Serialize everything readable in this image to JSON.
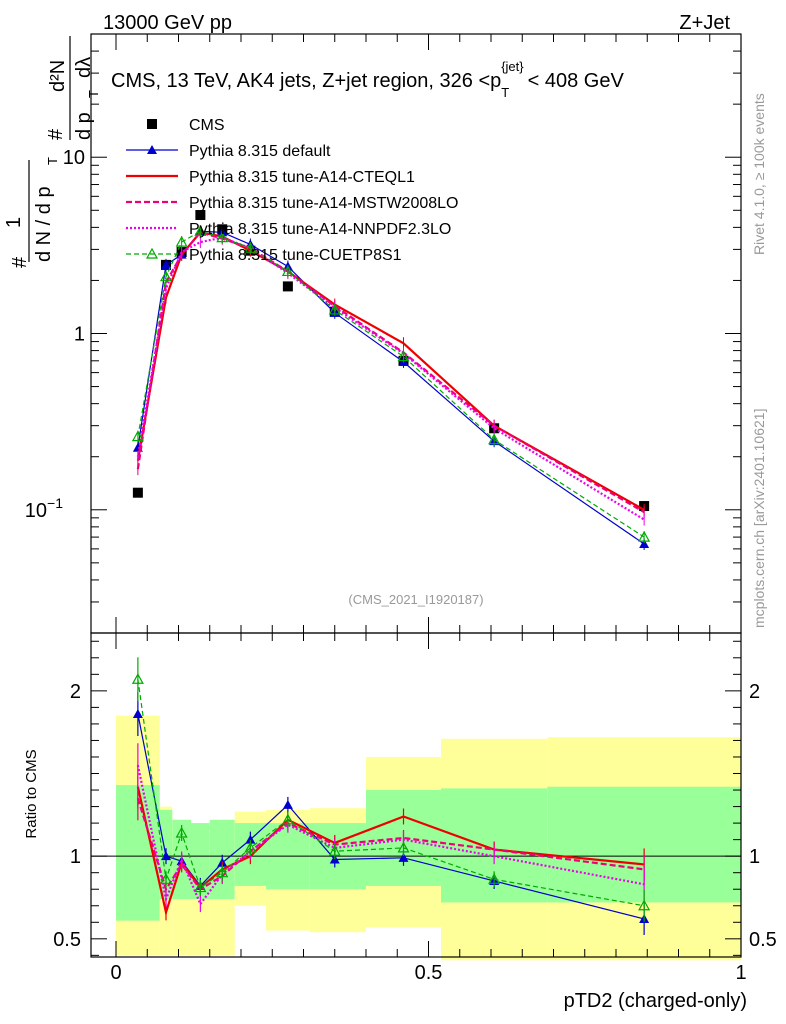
{
  "header": {
    "left": "13000 GeV pp",
    "right": "Z+Jet"
  },
  "side_labels": {
    "rivet": "Rivet 4.1.0, ≥ 100k events",
    "mcplots": "mcplots.cern.ch [arXiv:2401.10621]"
  },
  "colors": {
    "cms": "#000000",
    "default": "#0000cc",
    "cteql1": "#ee0000",
    "mstw": "#ee0077",
    "nnpdf": "#ee00ee",
    "cuetp8s1": "#00aa00",
    "band_outer": "#ffff99",
    "band_inner": "#99ff99"
  },
  "chart_data": [
    {
      "type": "line",
      "title": "CMS, 13 TeV, AK4 jets, Z+jet region, 326 <p",
      "title_sub": "T",
      "title_sup": "{jet}",
      "title_tail": "< 408 GeV",
      "ylabel_parts": [
        "#",
        "1",
        "d N / d p",
        "T",
        "#",
        "d²N",
        "d p",
        "T",
        "dλ"
      ],
      "yscale": "log",
      "ylim": [
        0.02,
        50
      ],
      "xlim": [
        -0.04,
        1.0
      ],
      "yticks": [
        {
          "v": 0.1,
          "label": "10",
          "sup": "−1"
        },
        {
          "v": 1,
          "label": "1"
        },
        {
          "v": 10,
          "label": "10"
        }
      ],
      "watermark": "(CMS_2021_I1920187)",
      "legend_position": "top-left",
      "x": [
        0.035,
        0.08,
        0.105,
        0.135,
        0.17,
        0.215,
        0.275,
        0.35,
        0.46,
        0.605,
        0.845
      ],
      "series": [
        {
          "key": "cms",
          "name": "CMS",
          "values": [
            0.125,
            2.45,
            2.9,
            4.7,
            3.9,
            2.95,
            1.85,
            1.33,
            0.7,
            0.29,
            0.105
          ]
        },
        {
          "key": "default",
          "name": "Pythia 8.315 default",
          "values": [
            0.225,
            2.45,
            2.8,
            3.8,
            3.75,
            3.2,
            2.4,
            1.31,
            0.69,
            0.245,
            0.064
          ]
        },
        {
          "key": "cteql1",
          "name": "Pythia 8.315 tune-A14-CTEQL1",
          "values": [
            0.19,
            1.6,
            2.8,
            3.75,
            3.55,
            2.95,
            2.25,
            1.46,
            0.88,
            0.3,
            0.1
          ]
        },
        {
          "key": "mstw",
          "name": "Pythia 8.315 tune-A14-MSTW2008LO",
          "values": [
            0.17,
            1.95,
            2.8,
            3.75,
            3.45,
            3.05,
            2.25,
            1.43,
            0.78,
            0.3,
            0.097
          ]
        },
        {
          "key": "nnpdf",
          "name": "Pythia 8.315 tune-A14-NNPDF2.3LO",
          "values": [
            0.2,
            1.8,
            2.9,
            3.3,
            3.5,
            3.05,
            2.2,
            1.4,
            0.77,
            0.29,
            0.088
          ]
        },
        {
          "key": "cuetp8s1",
          "name": "Pythia 8.315 tune-CUETP8S1",
          "values": [
            0.26,
            2.1,
            3.3,
            3.8,
            3.5,
            3.05,
            2.25,
            1.36,
            0.74,
            0.25,
            0.07
          ]
        }
      ]
    },
    {
      "type": "line",
      "ylabel": "Ratio to CMS",
      "xlabel": "pTD2 (charged-only)",
      "ylim": [
        0.39,
        2.35
      ],
      "xlim": [
        -0.04,
        1.0
      ],
      "xticks": [
        {
          "v": 0,
          "label": "0"
        },
        {
          "v": 0.5,
          "label": "0.5"
        },
        {
          "v": 1,
          "label": "1"
        }
      ],
      "yticks": [
        {
          "v": 0.5,
          "label": "0.5"
        },
        {
          "v": 1,
          "label": "1"
        },
        {
          "v": 2,
          "label": "2"
        }
      ],
      "x": [
        0.035,
        0.08,
        0.105,
        0.135,
        0.17,
        0.215,
        0.275,
        0.35,
        0.46,
        0.605,
        0.845
      ],
      "bands": [
        {
          "x0": 0.0,
          "x1": 0.07,
          "outer": [
            0.4,
            1.85
          ],
          "inner": [
            0.61,
            1.43
          ]
        },
        {
          "x0": 0.07,
          "x1": 0.09,
          "outer": [
            0.4,
            1.3
          ],
          "inner": [
            0.74,
            1.28
          ]
        },
        {
          "x0": 0.09,
          "x1": 0.12,
          "outer": [
            0.4,
            1.22
          ],
          "inner": [
            0.74,
            1.22
          ]
        },
        {
          "x0": 0.12,
          "x1": 0.15,
          "outer": [
            0.4,
            1.2
          ],
          "inner": [
            0.74,
            1.2
          ]
        },
        {
          "x0": 0.15,
          "x1": 0.19,
          "outer": [
            0.4,
            1.22
          ],
          "inner": [
            0.74,
            1.22
          ]
        },
        {
          "x0": 0.19,
          "x1": 0.24,
          "outer": [
            0.7,
            1.27
          ],
          "inner": [
            0.82,
            1.2
          ]
        },
        {
          "x0": 0.24,
          "x1": 0.31,
          "outer": [
            0.55,
            1.28
          ],
          "inner": [
            0.8,
            1.2
          ]
        },
        {
          "x0": 0.31,
          "x1": 0.4,
          "outer": [
            0.54,
            1.29
          ],
          "inner": [
            0.8,
            1.2
          ]
        },
        {
          "x0": 0.4,
          "x1": 0.52,
          "outer": [
            0.57,
            1.6
          ],
          "inner": [
            0.82,
            1.4
          ]
        },
        {
          "x0": 0.52,
          "x1": 0.69,
          "outer": [
            0.37,
            1.71
          ],
          "inner": [
            0.72,
            1.41
          ]
        },
        {
          "x0": 0.69,
          "x1": 1.0,
          "outer": [
            0.37,
            1.72
          ],
          "inner": [
            0.72,
            1.42
          ]
        }
      ],
      "series": [
        {
          "key": "default",
          "values": [
            1.86,
            1.0,
            0.97,
            0.82,
            0.96,
            1.1,
            1.31,
            0.98,
            0.99,
            0.85,
            0.62
          ]
        },
        {
          "key": "cteql1",
          "values": [
            1.42,
            0.66,
            0.96,
            0.81,
            0.92,
            1.0,
            1.22,
            1.08,
            1.24,
            1.04,
            0.95
          ]
        },
        {
          "key": "mstw",
          "values": [
            1.35,
            0.8,
            0.95,
            0.8,
            0.88,
            1.03,
            1.2,
            1.07,
            1.11,
            1.04,
            0.92
          ]
        },
        {
          "key": "nnpdf",
          "values": [
            1.55,
            0.74,
            0.98,
            0.71,
            0.89,
            1.03,
            1.19,
            1.05,
            1.1,
            1.0,
            0.83
          ]
        },
        {
          "key": "cuetp8s1",
          "values": [
            2.07,
            0.86,
            1.14,
            0.81,
            0.9,
            1.05,
            1.22,
            1.03,
            1.05,
            0.86,
            0.7
          ]
        }
      ]
    }
  ]
}
